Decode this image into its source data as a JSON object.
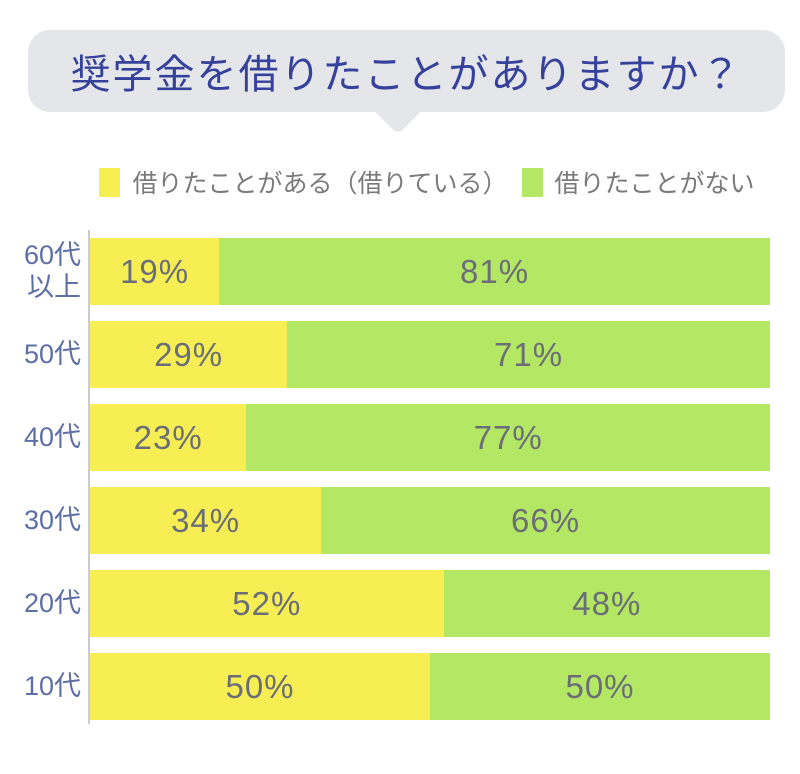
{
  "title": "奨学金を借りたことがありますか？",
  "legend": {
    "items": [
      {
        "name": "borrowed",
        "label": "借りたことがある（借りている）",
        "color": "#f7ee54"
      },
      {
        "name": "not_borrowed",
        "label": "借りたことがない",
        "color": "#b4e764"
      }
    ]
  },
  "chart_data": {
    "type": "bar",
    "orientation": "horizontal",
    "stacked": true,
    "unit": "%",
    "xlim": [
      0,
      100
    ],
    "grid": false,
    "legend_position": "top",
    "value_labels": "centered-in-segment",
    "categories": [
      "60代\n以上",
      "50代",
      "40代",
      "30代",
      "20代",
      "10代"
    ],
    "series": [
      {
        "name": "借りたことがある（借りている）",
        "color": "#f7ee54",
        "values": [
          19,
          29,
          23,
          34,
          52,
          50
        ]
      },
      {
        "name": "借りたことがない",
        "color": "#b4e764",
        "values": [
          81,
          71,
          77,
          66,
          48,
          50
        ]
      }
    ]
  },
  "colors": {
    "background": "#ffffff",
    "bubble_bg": "#e4e6e9",
    "title_text": "#35419a",
    "category_label": "#5e6fa6",
    "value_label": "#6b6e77",
    "legend_text": "#7a7a7a",
    "axis_line": "#c9ccd1"
  }
}
